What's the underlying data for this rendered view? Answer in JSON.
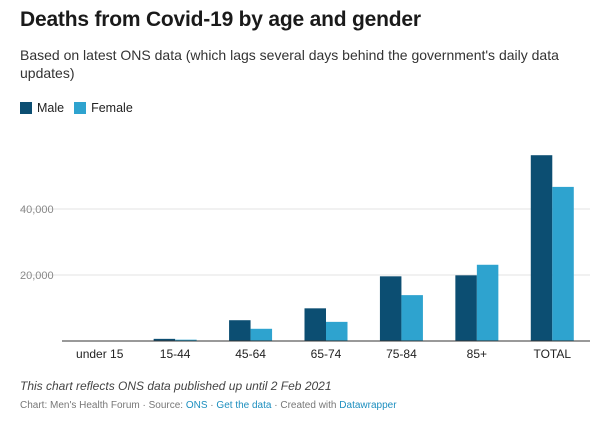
{
  "title": "Deaths from Covid-19 by age and gender",
  "subtitle": "Based on latest ONS data (which lags several days behind the government's daily data updates)",
  "note": "This chart reflects ONS data published up until 2 Feb 2021",
  "source": {
    "prefix": "Chart: Men's Health Forum · Source: ",
    "source_link": "ONS",
    "sep1": " · ",
    "get_data": "Get the data",
    "sep2": " · Created with ",
    "tool": "Datawrapper"
  },
  "colors": {
    "male": "#0c4e72",
    "female": "#2ea3cf",
    "grid": "#e3e3e3",
    "axis": "#333333"
  },
  "chart_data": {
    "type": "bar",
    "categories": [
      "under 15",
      "15-44",
      "45-64",
      "65-74",
      "75-84",
      "85+",
      "TOTAL"
    ],
    "series": [
      {
        "name": "Male",
        "values": [
          10,
          650,
          6300,
          9900,
          19600,
          19900,
          56300
        ]
      },
      {
        "name": "Female",
        "values": [
          8,
          400,
          3700,
          5800,
          13900,
          23100,
          46700
        ]
      }
    ],
    "yticks": [
      20000,
      40000
    ],
    "ytick_labels": [
      "20,000",
      "40,000"
    ],
    "ylim": [
      0,
      60000
    ],
    "grid": true,
    "legend_position": "top-left"
  }
}
